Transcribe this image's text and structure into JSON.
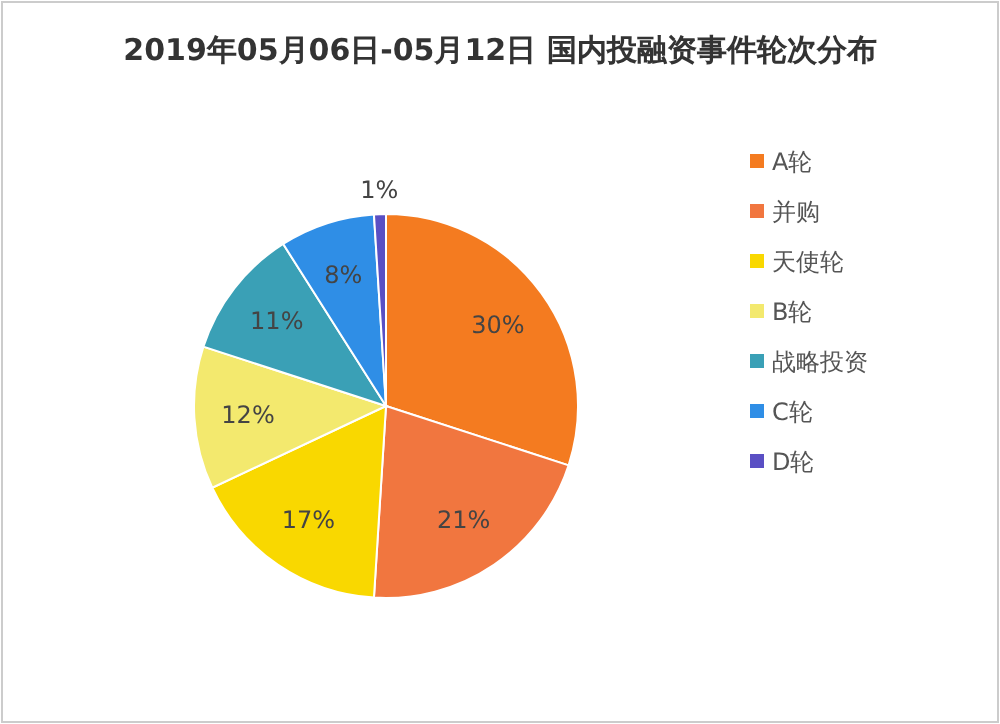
{
  "chart_data": {
    "type": "pie",
    "title": "2019年05月06日-05月12日 国内投融资事件轮次分布",
    "categories": [
      "A轮",
      "并购",
      "天使轮",
      "B轮",
      "战略投资",
      "C轮",
      "D轮"
    ],
    "values": [
      30,
      21,
      17,
      12,
      11,
      8,
      1
    ],
    "colors": [
      "#f47b20",
      "#f1763f",
      "#f9d800",
      "#f3e96e",
      "#3aa0b6",
      "#2f8ee6",
      "#5a4fc4"
    ],
    "value_labels": [
      "30%",
      "21%",
      "17%",
      "12%",
      "11%",
      "8%",
      "1%"
    ],
    "legend": "right"
  }
}
